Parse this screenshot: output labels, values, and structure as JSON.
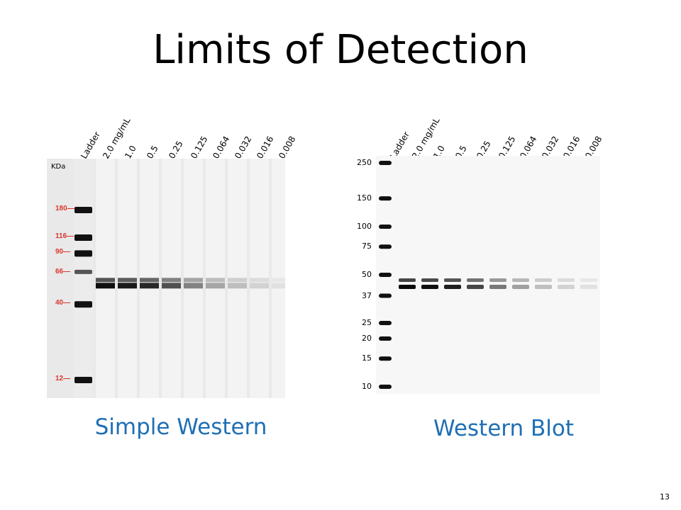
{
  "slide": {
    "title": "Limits of Detection",
    "page_number": "13"
  },
  "simple_western": {
    "caption": "Simple Western",
    "units_label": "KDa",
    "lane_labels": [
      "Ladder",
      "2.0 mg/mL",
      "1.0",
      "0.5",
      "0.25",
      "0.125",
      "0.064",
      "0.032",
      "0.016",
      "0.008"
    ],
    "markers": [
      {
        "label": "180",
        "kda": 180
      },
      {
        "label": "116",
        "kda": 116
      },
      {
        "label": "90",
        "kda": 90
      },
      {
        "label": "66",
        "kda": 66
      },
      {
        "label": "40",
        "kda": 40
      },
      {
        "label": "12",
        "kda": 12
      }
    ],
    "marker_color": "#d9362c"
  },
  "western_blot": {
    "caption": "Western Blot",
    "lane_labels": [
      "Ladder",
      "2.0 mg/mL",
      "1.0",
      "0.5",
      "0.25",
      "0.125",
      "0.064",
      "0.032",
      "0.016",
      "0.008"
    ],
    "markers": [
      {
        "label": "250",
        "kda": 250
      },
      {
        "label": "150",
        "kda": 150
      },
      {
        "label": "100",
        "kda": 100
      },
      {
        "label": "75",
        "kda": 75
      },
      {
        "label": "50",
        "kda": 50
      },
      {
        "label": "37",
        "kda": 37
      },
      {
        "label": "25",
        "kda": 25
      },
      {
        "label": "20",
        "kda": 20
      },
      {
        "label": "15",
        "kda": 15
      },
      {
        "label": "10",
        "kda": 10
      }
    ]
  },
  "colors": {
    "caption": "#1f6fb4"
  }
}
